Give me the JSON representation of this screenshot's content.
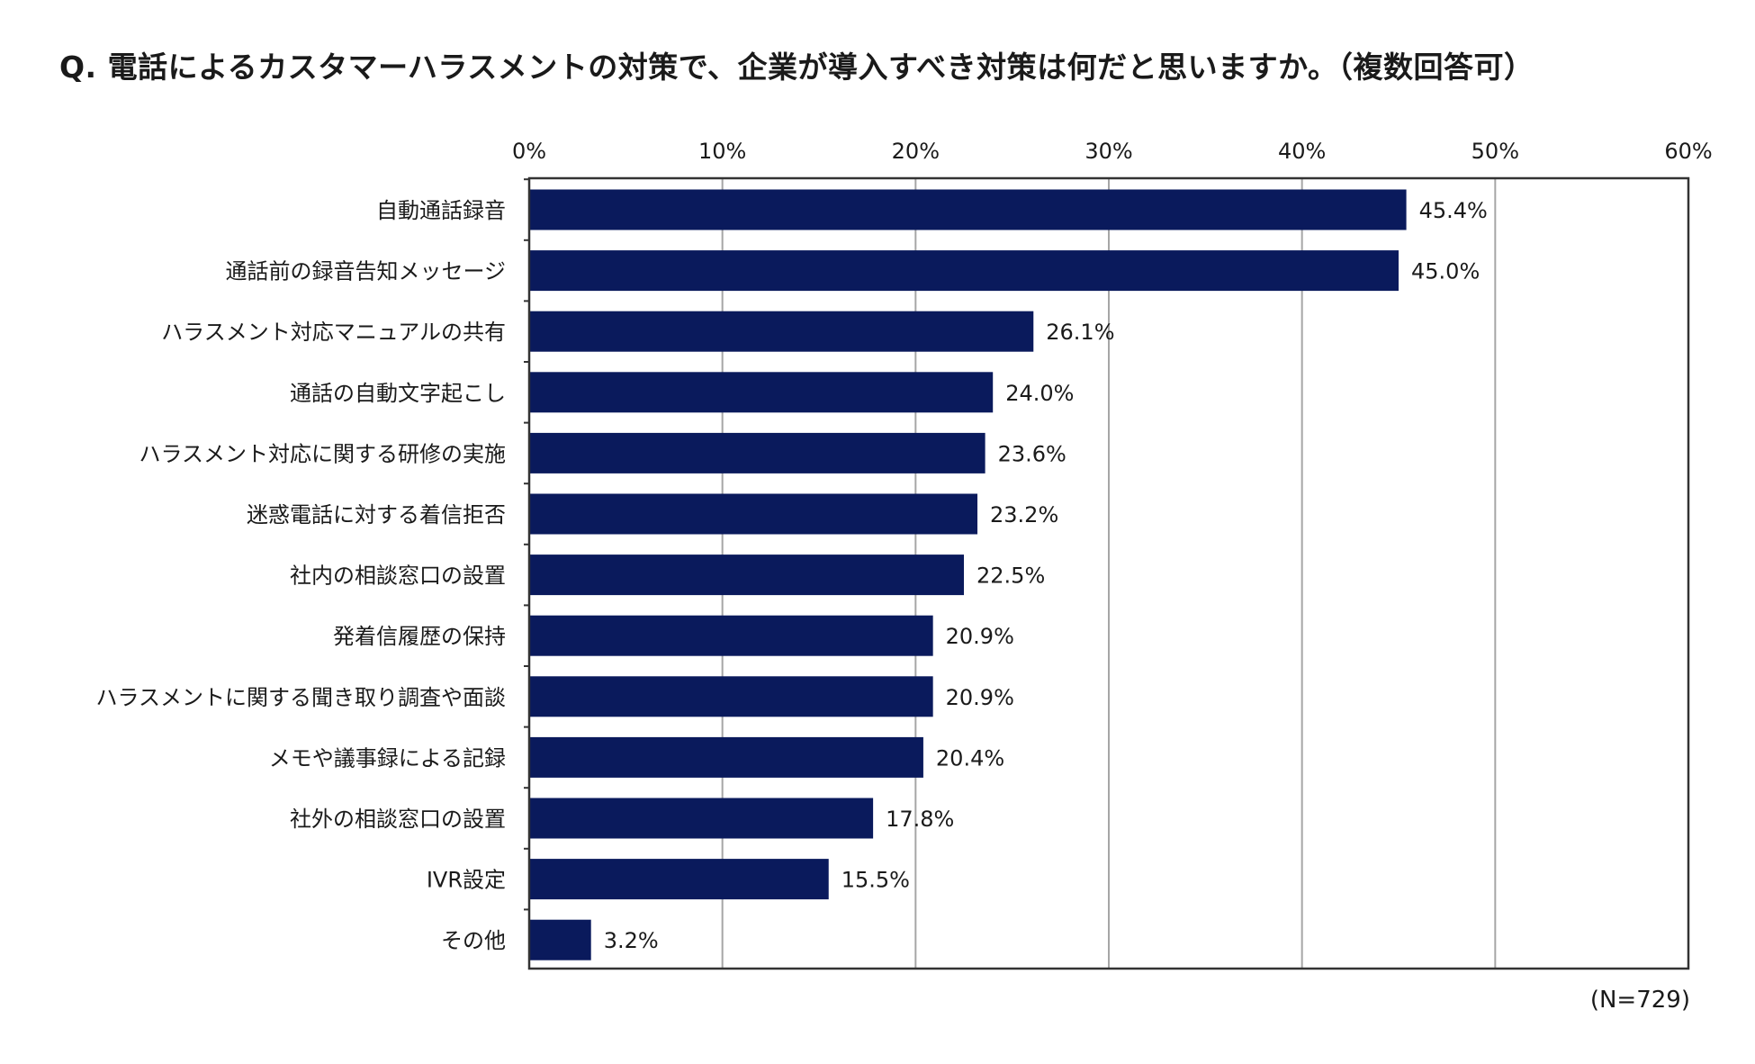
{
  "title": "Q. 電話によるカスタマーハラスメントの対策で、企業が導入すべき対策は何だと思いますか。（複数回答可）",
  "note": "(N=729)",
  "colors": {
    "bar": "#0a1a5c",
    "grid": "#a6a6a6",
    "axis": "#333333"
  },
  "chart_data": {
    "type": "bar",
    "orientation": "horizontal",
    "title": "Q. 電話によるカスタマーハラスメントの対策で、企業が導入すべき対策は何だと思いますか。（複数回答可）",
    "xlabel": "",
    "ylabel": "",
    "xlim": [
      0,
      60
    ],
    "ticks": [
      0,
      10,
      20,
      30,
      40,
      50,
      60
    ],
    "tick_labels": [
      "0%",
      "10%",
      "20%",
      "30%",
      "40%",
      "50%",
      "60%"
    ],
    "grid": true,
    "categories": [
      "自動通話録音",
      "通話前の録音告知メッセージ",
      "ハラスメント対応マニュアルの共有",
      "通話の自動文字起こし",
      "ハラスメント対応に関する研修の実施",
      "迷惑電話に対する着信拒否",
      "社内の相談窓口の設置",
      "発着信履歴の保持",
      "ハラスメントに関する聞き取り調査や面談",
      "メモや議事録による記録",
      "社外の相談窓口の設置",
      "IVR設定",
      "その他"
    ],
    "values": [
      45.4,
      45.0,
      26.1,
      24.0,
      23.6,
      23.2,
      22.5,
      20.9,
      20.9,
      20.4,
      17.8,
      15.5,
      3.2
    ],
    "value_labels": [
      "45.4%",
      "45.0%",
      "26.1%",
      "24.0%",
      "23.6%",
      "23.2%",
      "22.5%",
      "20.9%",
      "20.9%",
      "20.4%",
      "17.8%",
      "15.5%",
      "3.2%"
    ]
  }
}
